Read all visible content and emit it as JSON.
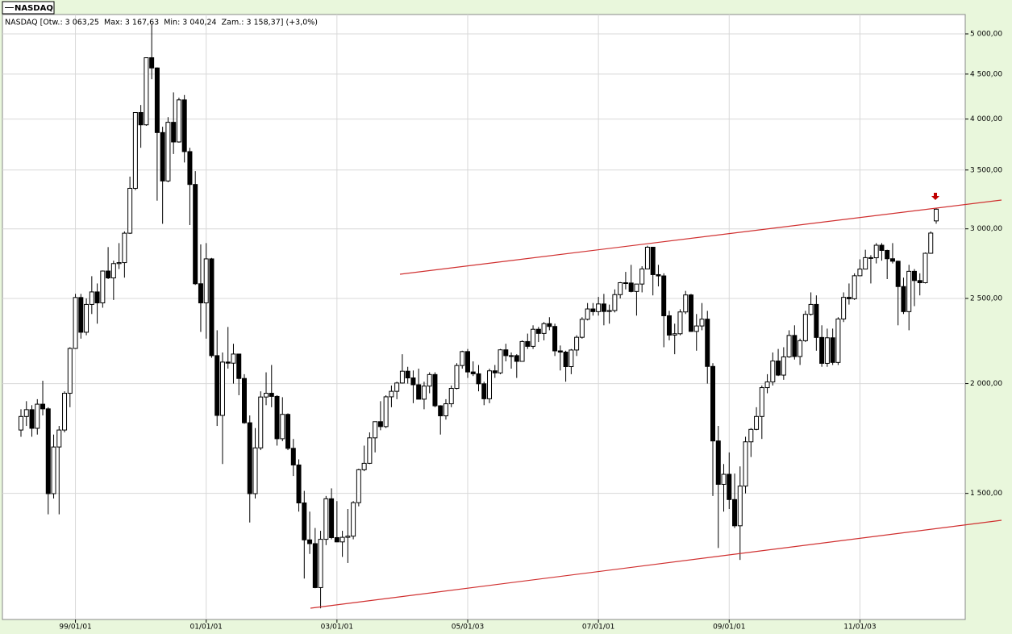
{
  "chart_data": {
    "type": "candlestick",
    "legend_label": "NASDAQ",
    "header": "NASDAQ [Otw.: 3 063,25  Max: 3 167,63  Min: 3 040,24  Zam.: 3 158,37] (+3,0%)",
    "log_scale": true,
    "grid": true,
    "up_color": "#ffffff",
    "down_color": "#000000",
    "ylim": [
      1078,
      5238
    ],
    "yticks": [
      {
        "value": 1500,
        "label": "1 500,00"
      },
      {
        "value": 2000,
        "label": "2 000,00"
      },
      {
        "value": 2500,
        "label": "2 500,00"
      },
      {
        "value": 3000,
        "label": "3 000,00"
      },
      {
        "value": 3500,
        "label": "3 500,00"
      },
      {
        "value": 4000,
        "label": "4 000,00"
      },
      {
        "value": 4500,
        "label": "4 500,00"
      },
      {
        "value": 5000,
        "label": "5 000,00"
      }
    ],
    "xticks": [
      {
        "value": 10,
        "label": "99/01/01"
      },
      {
        "value": 34,
        "label": "01/01/01"
      },
      {
        "value": 58,
        "label": "03/01/01"
      },
      {
        "value": 82,
        "label": "05/01/03"
      },
      {
        "value": 106,
        "label": "07/01/01"
      },
      {
        "value": 130,
        "label": "09/01/01"
      },
      {
        "value": 154,
        "label": "11/01/03"
      }
    ],
    "candles": [
      [
        1771,
        1870,
        1740,
        1835
      ],
      [
        1835,
        1910,
        1790,
        1868
      ],
      [
        1868,
        1890,
        1740,
        1779
      ],
      [
        1779,
        1920,
        1750,
        1895
      ],
      [
        1895,
        2015,
        1840,
        1872
      ],
      [
        1872,
        1880,
        1420,
        1499
      ],
      [
        1499,
        1750,
        1480,
        1694
      ],
      [
        1694,
        1790,
        1420,
        1771
      ],
      [
        1771,
        1960,
        1760,
        1950
      ],
      [
        1950,
        2200,
        1880,
        2193
      ],
      [
        2193,
        2530,
        2190,
        2506
      ],
      [
        2506,
        2530,
        2250,
        2288
      ],
      [
        2288,
        2500,
        2270,
        2461
      ],
      [
        2461,
        2650,
        2400,
        2543
      ],
      [
        2543,
        2600,
        2340,
        2471
      ],
      [
        2471,
        2690,
        2440,
        2686
      ],
      [
        2686,
        2860,
        2630,
        2638
      ],
      [
        2638,
        2760,
        2490,
        2739
      ],
      [
        2739,
        2890,
        2700,
        2746
      ],
      [
        2746,
        2980,
        2640,
        2966
      ],
      [
        2966,
        3440,
        2960,
        3336
      ],
      [
        3336,
        4070,
        3320,
        4069
      ],
      [
        4069,
        4150,
        3710,
        3940
      ],
      [
        3940,
        4700,
        3930,
        4697
      ],
      [
        4697,
        5130,
        4440,
        4573
      ],
      [
        4573,
        4580,
        3230,
        3861
      ],
      [
        3861,
        3920,
        3040,
        3401
      ],
      [
        3401,
        4020,
        3390,
        3966
      ],
      [
        3966,
        4290,
        3650,
        3767
      ],
      [
        3767,
        4230,
        3760,
        4206
      ],
      [
        4206,
        4260,
        3570,
        3673
      ],
      [
        3673,
        3710,
        3030,
        3370
      ],
      [
        3370,
        3490,
        2590,
        2598
      ],
      [
        2598,
        2880,
        2290,
        2471
      ],
      [
        2471,
        2890,
        2250,
        2773
      ],
      [
        2773,
        2780,
        2140,
        2152
      ],
      [
        2152,
        2300,
        1790,
        1840
      ],
      [
        1840,
        2170,
        1620,
        2116
      ],
      [
        2116,
        2320,
        2080,
        2110
      ],
      [
        2110,
        2220,
        2000,
        2161
      ],
      [
        2161,
        2160,
        1940,
        2027
      ],
      [
        2027,
        2050,
        1800,
        1805
      ],
      [
        1805,
        1840,
        1390,
        1499
      ],
      [
        1499,
        1780,
        1480,
        1690
      ],
      [
        1690,
        1960,
        1680,
        1931
      ],
      [
        1931,
        2060,
        1890,
        1950
      ],
      [
        1950,
        2100,
        1880,
        1934
      ],
      [
        1934,
        1940,
        1700,
        1731
      ],
      [
        1731,
        1930,
        1720,
        1845
      ],
      [
        1845,
        1850,
        1680,
        1688
      ],
      [
        1688,
        1730,
        1570,
        1616
      ],
      [
        1616,
        1640,
        1430,
        1463
      ],
      [
        1463,
        1510,
        1200,
        1328
      ],
      [
        1328,
        1430,
        1280,
        1315
      ],
      [
        1315,
        1370,
        1170,
        1172
      ],
      [
        1172,
        1360,
        1110,
        1330
      ],
      [
        1330,
        1490,
        1310,
        1479
      ],
      [
        1479,
        1520,
        1330,
        1336
      ],
      [
        1336,
        1470,
        1320,
        1321
      ],
      [
        1321,
        1360,
        1270,
        1337
      ],
      [
        1337,
        1440,
        1250,
        1341
      ],
      [
        1341,
        1470,
        1330,
        1464
      ],
      [
        1464,
        1600,
        1450,
        1596
      ],
      [
        1596,
        1700,
        1590,
        1623
      ],
      [
        1623,
        1760,
        1620,
        1735
      ],
      [
        1735,
        1810,
        1670,
        1810
      ],
      [
        1810,
        1910,
        1770,
        1787
      ],
      [
        1787,
        1940,
        1780,
        1932
      ],
      [
        1932,
        1990,
        1880,
        1960
      ],
      [
        1960,
        2010,
        1920,
        2003
      ],
      [
        2003,
        2160,
        2000,
        2066
      ],
      [
        2066,
        2090,
        2000,
        2030
      ],
      [
        2030,
        2070,
        1900,
        1994
      ],
      [
        1994,
        2080,
        1920,
        1920
      ],
      [
        1920,
        2010,
        1870,
        1987
      ],
      [
        1987,
        2060,
        1950,
        2048
      ],
      [
        2048,
        2060,
        1880,
        1887
      ],
      [
        1887,
        1890,
        1750,
        1838
      ],
      [
        1838,
        1920,
        1820,
        1897
      ],
      [
        1897,
        1990,
        1880,
        1975
      ],
      [
        1975,
        2110,
        1970,
        2097
      ],
      [
        2097,
        2180,
        2080,
        2175
      ],
      [
        2175,
        2190,
        2030,
        2062
      ],
      [
        2062,
        2120,
        2040,
        2052
      ],
      [
        2052,
        2100,
        1960,
        1999
      ],
      [
        1999,
        2010,
        1890,
        1922
      ],
      [
        1922,
        2080,
        1900,
        2068
      ],
      [
        2068,
        2100,
        2030,
        2057
      ],
      [
        2057,
        2190,
        2050,
        2185
      ],
      [
        2185,
        2220,
        2120,
        2152
      ],
      [
        2152,
        2170,
        2080,
        2152
      ],
      [
        2152,
        2160,
        2030,
        2120
      ],
      [
        2120,
        2240,
        2120,
        2233
      ],
      [
        2233,
        2280,
        2190,
        2205
      ],
      [
        2205,
        2330,
        2190,
        2306
      ],
      [
        2306,
        2320,
        2230,
        2281
      ],
      [
        2281,
        2350,
        2240,
        2340
      ],
      [
        2340,
        2380,
        2300,
        2323
      ],
      [
        2323,
        2340,
        2150,
        2179
      ],
      [
        2179,
        2210,
        2070,
        2172
      ],
      [
        2172,
        2180,
        2010,
        2091
      ],
      [
        2091,
        2190,
        2050,
        2184
      ],
      [
        2184,
        2270,
        2150,
        2258
      ],
      [
        2258,
        2380,
        2250,
        2367
      ],
      [
        2367,
        2470,
        2360,
        2432
      ],
      [
        2432,
        2470,
        2390,
        2415
      ],
      [
        2415,
        2510,
        2390,
        2464
      ],
      [
        2464,
        2530,
        2330,
        2416
      ],
      [
        2416,
        2460,
        2340,
        2422
      ],
      [
        2422,
        2560,
        2410,
        2525
      ],
      [
        2525,
        2610,
        2500,
        2605
      ],
      [
        2605,
        2680,
        2560,
        2603
      ],
      [
        2603,
        2730,
        2540,
        2546
      ],
      [
        2546,
        2590,
        2390,
        2596
      ],
      [
        2596,
        2720,
        2540,
        2701
      ],
      [
        2701,
        2870,
        2700,
        2859
      ],
      [
        2859,
        2860,
        2520,
        2661
      ],
      [
        2661,
        2730,
        2580,
        2652
      ],
      [
        2652,
        2670,
        2200,
        2389
      ],
      [
        2389,
        2420,
        2240,
        2271
      ],
      [
        2271,
        2340,
        2160,
        2279
      ],
      [
        2279,
        2430,
        2270,
        2413
      ],
      [
        2413,
        2550,
        2400,
        2523
      ],
      [
        2523,
        2530,
        2290,
        2293
      ],
      [
        2293,
        2400,
        2180,
        2326
      ],
      [
        2326,
        2470,
        2300,
        2368
      ],
      [
        2368,
        2420,
        2000,
        2092
      ],
      [
        2092,
        2110,
        1490,
        1721
      ],
      [
        1721,
        1790,
        1300,
        1536
      ],
      [
        1536,
        1620,
        1430,
        1577
      ],
      [
        1577,
        1670,
        1440,
        1476
      ],
      [
        1476,
        1580,
        1370,
        1378
      ],
      [
        1378,
        1610,
        1260,
        1529
      ],
      [
        1529,
        1740,
        1500,
        1717
      ],
      [
        1717,
        1780,
        1650,
        1774
      ],
      [
        1774,
        1880,
        1770,
        1835
      ],
      [
        1835,
        1990,
        1730,
        1979
      ],
      [
        1979,
        2050,
        1950,
        2009
      ],
      [
        2009,
        2170,
        1990,
        2122
      ],
      [
        2122,
        2190,
        2040,
        2045
      ],
      [
        2045,
        2200,
        2020,
        2145
      ],
      [
        2145,
        2300,
        2140,
        2269
      ],
      [
        2269,
        2330,
        2130,
        2147
      ],
      [
        2147,
        2250,
        2100,
        2238
      ],
      [
        2238,
        2420,
        2230,
        2398
      ],
      [
        2398,
        2540,
        2390,
        2461
      ],
      [
        2461,
        2520,
        2180,
        2257
      ],
      [
        2257,
        2330,
        2090,
        2109
      ],
      [
        2109,
        2310,
        2090,
        2255
      ],
      [
        2255,
        2310,
        2100,
        2114
      ],
      [
        2114,
        2380,
        2100,
        2369
      ],
      [
        2369,
        2540,
        2350,
        2507
      ],
      [
        2507,
        2600,
        2460,
        2498
      ],
      [
        2498,
        2670,
        2490,
        2653
      ],
      [
        2653,
        2770,
        2650,
        2700
      ],
      [
        2700,
        2840,
        2700,
        2782
      ],
      [
        2782,
        2800,
        2600,
        2781
      ],
      [
        2781,
        2890,
        2740,
        2874
      ],
      [
        2874,
        2890,
        2760,
        2835
      ],
      [
        2835,
        2840,
        2630,
        2774
      ],
      [
        2774,
        2890,
        2740,
        2756
      ],
      [
        2756,
        2760,
        2330,
        2579
      ],
      [
        2579,
        2640,
        2400,
        2415
      ],
      [
        2415,
        2730,
        2300,
        2684
      ],
      [
        2684,
        2700,
        2450,
        2620
      ],
      [
        2620,
        2670,
        2520,
        2605
      ],
      [
        2605,
        2820,
        2600,
        2814
      ],
      [
        2814,
        2980,
        2810,
        2967
      ],
      [
        3063.25,
        3167.63,
        3040.24,
        3158.37
      ]
    ]
  }
}
